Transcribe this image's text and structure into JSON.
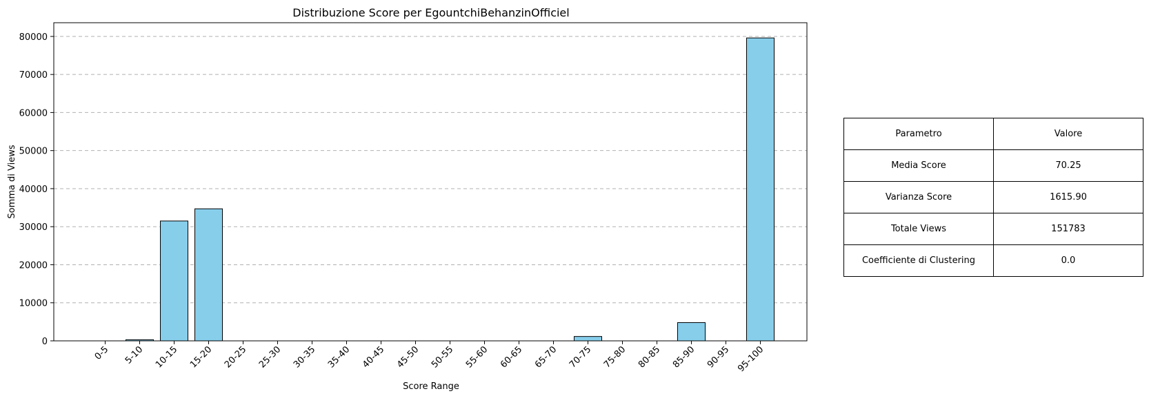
{
  "chart_data": {
    "type": "bar",
    "title": "Distribuzione Score per EgountchiBehanzinOfficiel",
    "xlabel": "Score Range",
    "ylabel": "Somma di Views",
    "categories": [
      "0-5",
      "5-10",
      "10-15",
      "15-20",
      "20-25",
      "25-30",
      "30-35",
      "35-40",
      "40-45",
      "45-50",
      "50-55",
      "55-60",
      "60-65",
      "65-70",
      "70-75",
      "75-80",
      "80-85",
      "85-90",
      "90-95",
      "95-100"
    ],
    "values": [
      0,
      300,
      31500,
      34700,
      0,
      0,
      0,
      0,
      0,
      0,
      0,
      0,
      0,
      0,
      1150,
      0,
      0,
      4800,
      0,
      79600
    ],
    "ylim": [
      0,
      83600
    ],
    "yticks": [
      0,
      10000,
      20000,
      30000,
      40000,
      50000,
      60000,
      70000,
      80000
    ],
    "grid": "y-dashed",
    "bar_color": "#87CEEB",
    "edge_color": "#000000"
  },
  "table": {
    "header": [
      "Parametro",
      "Valore"
    ],
    "rows": [
      [
        "Media Score",
        "70.25"
      ],
      [
        "Varianza Score",
        "1615.90"
      ],
      [
        "Totale Views",
        "151783"
      ],
      [
        "Coefficiente di Clustering",
        "0.0"
      ]
    ]
  }
}
